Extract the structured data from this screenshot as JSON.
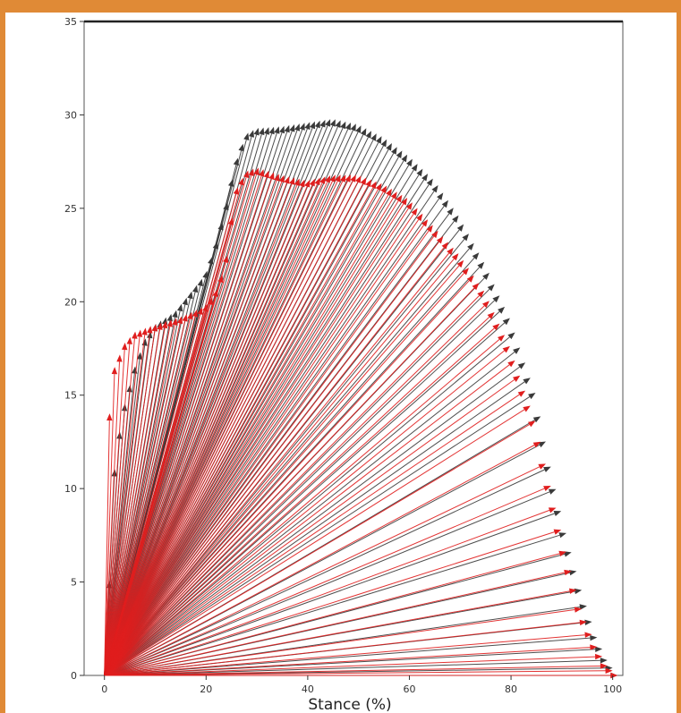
{
  "colors": {
    "border": "#e08a36",
    "series_a": "#3a3a3a",
    "series_b": "#e01e1e"
  },
  "chart_data": {
    "type": "quiver",
    "title": "",
    "xlabel": "Stance (%)",
    "ylabel": "",
    "xlim": [
      -4,
      102
    ],
    "ylim": [
      0,
      35
    ],
    "xticks": [
      0,
      20,
      40,
      60,
      80,
      100
    ],
    "yticks": [
      0,
      5,
      10,
      15,
      20,
      25,
      30,
      35
    ],
    "grid": false,
    "legend": "none",
    "series": [
      {
        "color": "#3a3a3a",
        "vectors_from": [
          0,
          0
        ],
        "arrow_tips": [
          [
            0,
            0
          ],
          [
            0.5,
            2
          ],
          [
            1,
            5
          ],
          [
            1.5,
            8
          ],
          [
            2,
            11
          ],
          [
            3,
            13
          ],
          [
            4,
            14.5
          ],
          [
            6,
            16.5
          ],
          [
            8,
            18
          ],
          [
            10,
            18.8
          ],
          [
            14,
            19.5
          ],
          [
            17,
            20.5
          ],
          [
            20,
            21.5
          ],
          [
            22,
            23
          ],
          [
            24,
            25
          ],
          [
            26,
            27.5
          ],
          [
            28,
            29
          ],
          [
            30,
            29.3
          ],
          [
            35,
            29.4
          ],
          [
            40,
            29.6
          ],
          [
            45,
            29.8
          ],
          [
            50,
            29.5
          ],
          [
            55,
            28.8
          ],
          [
            60,
            27.8
          ],
          [
            65,
            26.5
          ],
          [
            70,
            24.5
          ],
          [
            75,
            22
          ],
          [
            80,
            19
          ],
          [
            85,
            15
          ],
          [
            88,
            11
          ],
          [
            91,
            7.5
          ],
          [
            94,
            4.5
          ],
          [
            97,
            2
          ],
          [
            99,
            0.8
          ],
          [
            101,
            0
          ]
        ]
      },
      {
        "color": "#e01e1e",
        "vectors_from": [
          0,
          0
        ],
        "arrow_tips": [
          [
            0,
            0
          ],
          [
            0.2,
            3
          ],
          [
            0.4,
            7
          ],
          [
            0.6,
            11
          ],
          [
            1,
            14
          ],
          [
            2,
            16.5
          ],
          [
            4,
            17.8
          ],
          [
            6,
            18.4
          ],
          [
            10,
            18.8
          ],
          [
            15,
            19.2
          ],
          [
            20,
            19.8
          ],
          [
            22,
            20.5
          ],
          [
            24,
            22
          ],
          [
            25,
            24
          ],
          [
            26,
            26
          ],
          [
            28,
            27
          ],
          [
            30,
            27.2
          ],
          [
            35,
            26.8
          ],
          [
            40,
            26.5
          ],
          [
            45,
            26.8
          ],
          [
            50,
            26.8
          ],
          [
            55,
            26.3
          ],
          [
            60,
            25.5
          ],
          [
            65,
            24
          ],
          [
            70,
            22.5
          ],
          [
            75,
            20.5
          ],
          [
            80,
            17.5
          ],
          [
            85,
            13.5
          ],
          [
            88,
            10
          ],
          [
            91,
            6.5
          ],
          [
            94,
            3.5
          ],
          [
            97,
            1.5
          ],
          [
            99,
            0.5
          ],
          [
            101,
            0
          ]
        ]
      }
    ]
  }
}
